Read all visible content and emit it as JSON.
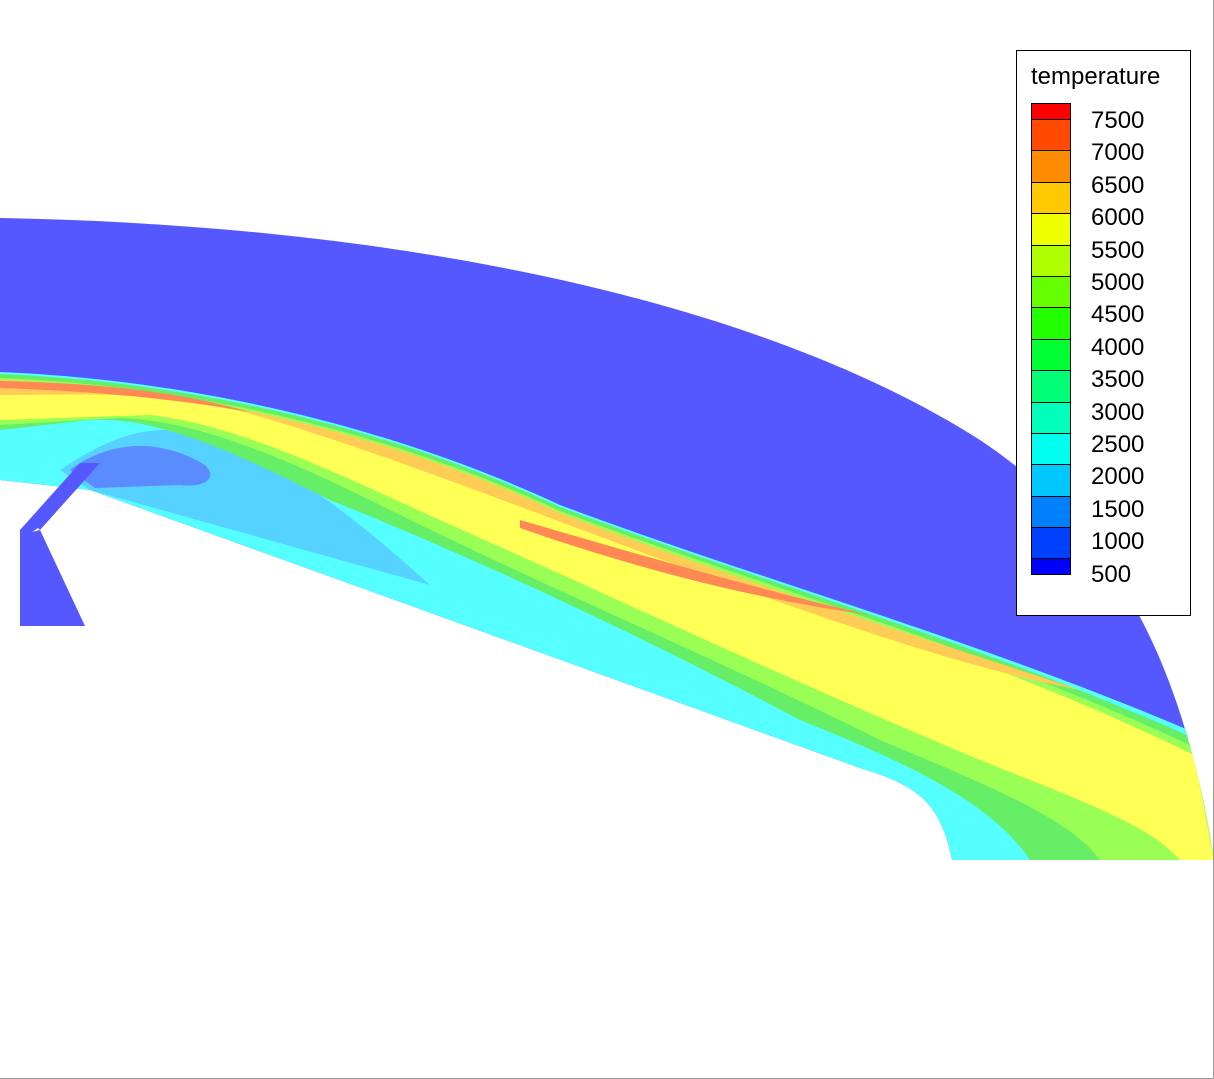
{
  "chart_data": {
    "type": "contour",
    "variable": "temperature",
    "legend": {
      "title": "temperature",
      "placement": "top-right",
      "levels": [
        7500,
        7000,
        6500,
        6000,
        5500,
        5000,
        4500,
        4000,
        3500,
        3000,
        2500,
        2000,
        1500,
        1000,
        500
      ],
      "colors": [
        "#ff0000",
        "#ff4a00",
        "#ff8c00",
        "#ffc800",
        "#eeff00",
        "#b0ff00",
        "#66ff00",
        "#22ff00",
        "#00ff33",
        "#00ff77",
        "#00ffbb",
        "#00ffee",
        "#00c8ff",
        "#0080ff",
        "#0040ff",
        "#0000ff"
      ]
    },
    "regions": [
      {
        "band": "500-1000",
        "color": "#5557ff"
      },
      {
        "band": "1000-1500",
        "color": "#5a8cff"
      },
      {
        "band": "1500-2000",
        "color": "#55d2ff"
      },
      {
        "band": "2000-2500",
        "color": "#55ffff"
      },
      {
        "band": "3500-4000",
        "color": "#66ee66"
      },
      {
        "band": "4500-5000",
        "color": "#99ff55"
      },
      {
        "band": "5500-6000",
        "color": "#ffff55"
      },
      {
        "band": "6500-7000",
        "color": "#ffcc55"
      },
      {
        "band": "7000-7500",
        "color": "#ff8855"
      }
    ]
  }
}
